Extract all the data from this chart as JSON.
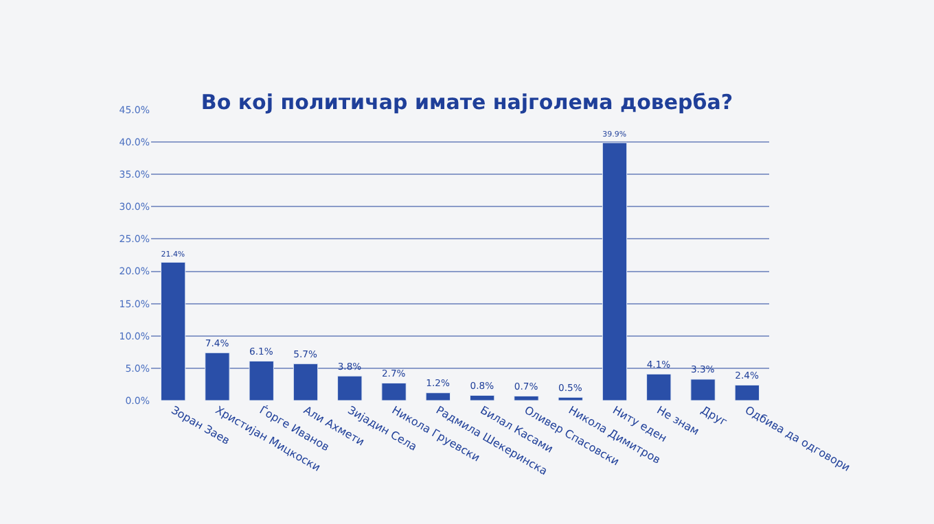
{
  "chart_data": {
    "type": "bar",
    "title": "Во кој политичар имате најголема доверба?",
    "categories": [
      "Зоран Заев",
      "Христијан Мицкоски",
      "Ѓорге Иванов",
      "Али Ахмети",
      "Зијадин Села",
      "Никола Груевски",
      "Радмила Шекеринска",
      "Билал Касами",
      "Оливер Спасовски",
      "Никола Димитров",
      "Ниту еден",
      "Не знам",
      "Друг",
      "Одбива да одговори"
    ],
    "values": [
      21.4,
      7.4,
      6.1,
      5.7,
      3.8,
      2.7,
      1.2,
      0.8,
      0.7,
      0.5,
      39.9,
      4.1,
      3.3,
      2.4
    ],
    "value_labels": [
      "21.4%",
      "7.4%",
      "6.1%",
      "5.7%",
      "3.8%",
      "2.7%",
      "1.2%",
      "0.8%",
      "0.7%",
      "0.5%",
      "39.9%",
      "4.1%",
      "3.3%",
      "2.4%"
    ],
    "color": "#2a4fa8",
    "ylim": [
      0,
      45
    ],
    "yticks": [
      {
        "value": 0,
        "label": "0.0%"
      },
      {
        "value": 5,
        "label": "5.0%"
      },
      {
        "value": 10,
        "label": "10.0%"
      },
      {
        "value": 15,
        "label": "15.0%"
      },
      {
        "value": 20,
        "label": "20.0%"
      },
      {
        "value": 25,
        "label": "25.0%"
      },
      {
        "value": 30,
        "label": "30.0%"
      },
      {
        "value": 35,
        "label": "35.0%"
      },
      {
        "value": 40,
        "label": "40.0%"
      },
      {
        "value": 45,
        "label": "45.0%"
      }
    ],
    "grid": "y",
    "legend": false
  }
}
